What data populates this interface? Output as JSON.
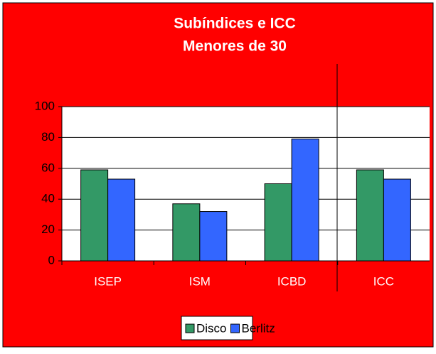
{
  "chart_data": {
    "type": "bar",
    "title": "Subíndices e ICC",
    "subtitle": "Menores de 30",
    "categories": [
      "ISEP",
      "ISM",
      "ICBD",
      "ICC"
    ],
    "series": [
      {
        "name": "Disco",
        "color": "#339966",
        "values": [
          59,
          37,
          50,
          59
        ]
      },
      {
        "name": "Berlitz",
        "color": "#3366ff",
        "values": [
          53,
          32,
          79,
          53
        ]
      }
    ],
    "ylim": [
      0,
      100
    ],
    "yticks": [
      0,
      20,
      40,
      60,
      80,
      100
    ],
    "grid": true,
    "legend": "bottom"
  }
}
